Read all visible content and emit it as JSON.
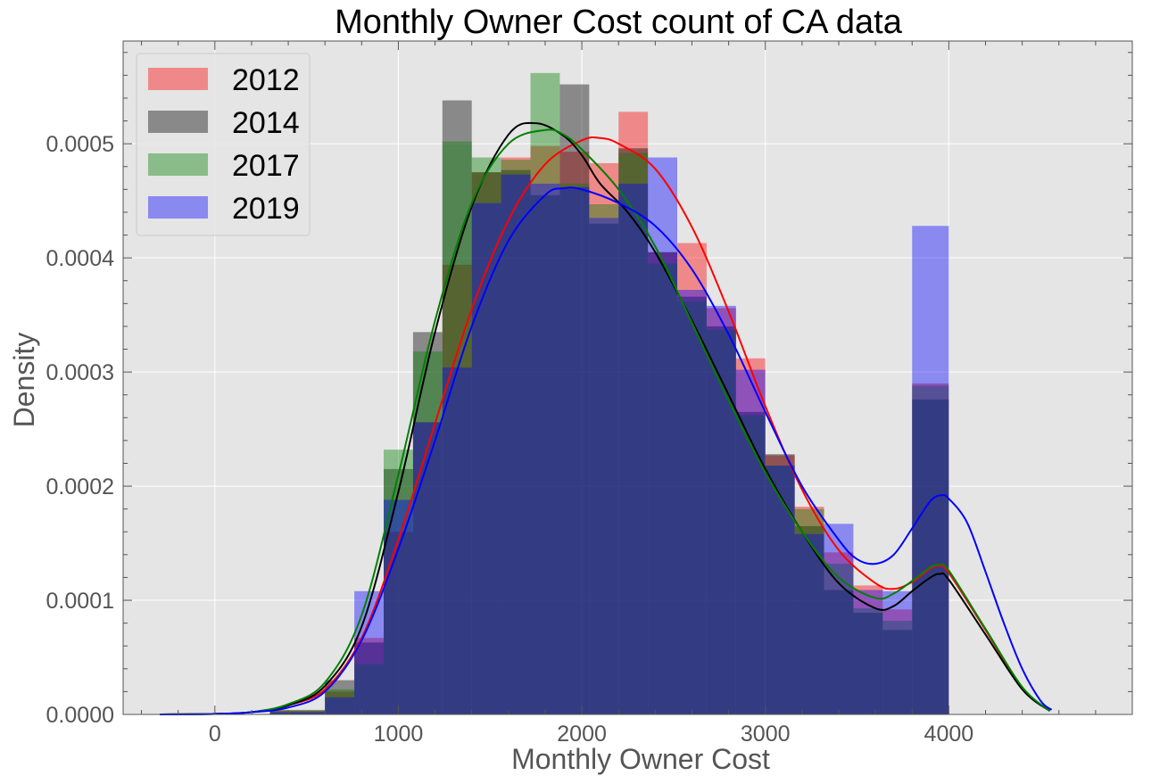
{
  "chart_data": {
    "type": "histogram",
    "title": "Monthly Owner Cost count of CA  data",
    "xlabel": "Monthly Owner Cost",
    "ylabel": "Density",
    "xlim": [
      -500,
      5000
    ],
    "ylim": [
      0,
      0.00059
    ],
    "xticks": [
      0,
      1000,
      2000,
      3000,
      4000
    ],
    "xtick_labels": [
      "0",
      "1000",
      "2000",
      "3000",
      "4000"
    ],
    "yticks": [
      0,
      0.0001,
      0.0002,
      0.0003,
      0.0004,
      0.0005
    ],
    "ytick_labels": [
      "0.0000",
      "0.0001",
      "0.0002",
      "0.0003",
      "0.0004",
      "0.0005"
    ],
    "grid": true,
    "legend_position": "top-left",
    "series": [
      {
        "name": "2012",
        "color": "#ff0000",
        "bins": [
          [
            -300,
            0,
            0.0
          ],
          [
            0,
            300,
            0.0
          ],
          [
            300,
            600,
            3e-06
          ],
          [
            600,
            760,
            2e-05
          ],
          [
            760,
            920,
            6.7e-05
          ],
          [
            920,
            1080,
            0.00016
          ],
          [
            1080,
            1240,
            0.000256
          ],
          [
            1240,
            1400,
            0.000394
          ],
          [
            1400,
            1560,
            0.000475
          ],
          [
            1560,
            1720,
            0.000488
          ],
          [
            1720,
            1880,
            0.000498
          ],
          [
            1880,
            2040,
            0.000493
          ],
          [
            2040,
            2200,
            0.000483
          ],
          [
            2200,
            2360,
            0.000528
          ],
          [
            2360,
            2520,
            0.000405
          ],
          [
            2520,
            2680,
            0.000413
          ],
          [
            2680,
            2840,
            0.000356
          ],
          [
            2840,
            3000,
            0.000312
          ],
          [
            3000,
            3160,
            0.000227
          ],
          [
            3160,
            3320,
            0.000182
          ],
          [
            3320,
            3480,
            0.000142
          ],
          [
            3480,
            3640,
            0.000113
          ],
          [
            3640,
            3800,
            9.2e-05
          ],
          [
            3800,
            4000,
            0.00029
          ]
        ],
        "kde": [
          [
            -300,
            0
          ],
          [
            0,
            5e-07
          ],
          [
            200,
            2e-06
          ],
          [
            400,
            8e-06
          ],
          [
            600,
            2.2e-05
          ],
          [
            800,
            6.7e-05
          ],
          [
            1000,
            0.000153
          ],
          [
            1200,
            0.000255
          ],
          [
            1400,
            0.000355
          ],
          [
            1600,
            0.000433
          ],
          [
            1800,
            0.000482
          ],
          [
            2000,
            0.000503
          ],
          [
            2100,
            0.000505
          ],
          [
            2200,
            0.0005
          ],
          [
            2400,
            0.000478
          ],
          [
            2600,
            0.000427
          ],
          [
            2800,
            0.000353
          ],
          [
            3000,
            0.00027
          ],
          [
            3200,
            0.000197
          ],
          [
            3400,
            0.000144
          ],
          [
            3600,
            0.000115
          ],
          [
            3700,
            0.00011
          ],
          [
            3800,
            0.000116
          ],
          [
            3900,
            0.000128
          ],
          [
            3950,
            0.00013
          ],
          [
            4000,
            0.000124
          ],
          [
            4200,
            7.4e-05
          ],
          [
            4400,
            2.3e-05
          ],
          [
            4550,
            3e-06
          ]
        ]
      },
      {
        "name": "2014",
        "color": "#000000",
        "bins": [
          [
            -300,
            0,
            0.0
          ],
          [
            0,
            300,
            0.0
          ],
          [
            300,
            600,
            4e-06
          ],
          [
            600,
            760,
            3e-05
          ],
          [
            760,
            920,
            6.3e-05
          ],
          [
            920,
            1080,
            0.000215
          ],
          [
            1080,
            1240,
            0.000335
          ],
          [
            1240,
            1400,
            0.000538
          ],
          [
            1400,
            1560,
            0.000475
          ],
          [
            1560,
            1720,
            0.000477
          ],
          [
            1720,
            1880,
            0.000455
          ],
          [
            1880,
            2040,
            0.000552
          ],
          [
            2040,
            2200,
            0.00043
          ],
          [
            2200,
            2360,
            0.000496
          ],
          [
            2360,
            2520,
            0.000405
          ],
          [
            2520,
            2680,
            0.000366
          ],
          [
            2680,
            2840,
            0.00034
          ],
          [
            2840,
            3000,
            0.000265
          ],
          [
            3000,
            3160,
            0.000228
          ],
          [
            3160,
            3320,
            0.000165
          ],
          [
            3320,
            3480,
            0.000109
          ],
          [
            3480,
            3640,
            8.9e-05
          ],
          [
            3640,
            3800,
            7.4e-05
          ],
          [
            3800,
            4000,
            0.000276
          ]
        ],
        "kde": [
          [
            -300,
            0
          ],
          [
            0,
            5e-07
          ],
          [
            200,
            2e-06
          ],
          [
            400,
            8e-06
          ],
          [
            600,
            2.5e-05
          ],
          [
            800,
            7.7e-05
          ],
          [
            1000,
            0.000195
          ],
          [
            1200,
            0.000335
          ],
          [
            1400,
            0.000445
          ],
          [
            1600,
            0.000508
          ],
          [
            1750,
            0.000518
          ],
          [
            1900,
            0.000507
          ],
          [
            2000,
            0.00049
          ],
          [
            2100,
            0.000465
          ],
          [
            2250,
            0.00044
          ],
          [
            2400,
            0.000405
          ],
          [
            2600,
            0.000345
          ],
          [
            2800,
            0.00028
          ],
          [
            3000,
            0.000215
          ],
          [
            3200,
            0.00016
          ],
          [
            3400,
            0.000115
          ],
          [
            3600,
            9.3e-05
          ],
          [
            3700,
            9.5e-05
          ],
          [
            3800,
            0.000108
          ],
          [
            3900,
            0.00012
          ],
          [
            3950,
            0.000123
          ],
          [
            4000,
            0.000118
          ],
          [
            4200,
            7e-05
          ],
          [
            4400,
            2.2e-05
          ],
          [
            4550,
            3e-06
          ]
        ]
      },
      {
        "name": "2017",
        "color": "#008000",
        "bins": [
          [
            -300,
            0,
            0.0
          ],
          [
            0,
            300,
            0.0
          ],
          [
            300,
            600,
            3e-06
          ],
          [
            600,
            760,
            2.2e-05
          ],
          [
            760,
            920,
            4.4e-05
          ],
          [
            920,
            1080,
            0.000232
          ],
          [
            1080,
            1240,
            0.000318
          ],
          [
            1240,
            1400,
            0.000502
          ],
          [
            1400,
            1560,
            0.000488
          ],
          [
            1560,
            1720,
            0.000486
          ],
          [
            1720,
            1880,
            0.000562
          ],
          [
            1880,
            2040,
            0.000465
          ],
          [
            2040,
            2200,
            0.000447
          ],
          [
            2200,
            2360,
            0.000492
          ],
          [
            2360,
            2520,
            0.000395
          ],
          [
            2520,
            2680,
            0.000362
          ],
          [
            2680,
            2840,
            0.000337
          ],
          [
            2840,
            3000,
            0.000262
          ],
          [
            3000,
            3160,
            0.000218
          ],
          [
            3160,
            3320,
            0.00018
          ],
          [
            3320,
            3480,
            0.000132
          ],
          [
            3480,
            3640,
            9.3e-05
          ],
          [
            3640,
            3800,
            8.2e-05
          ],
          [
            3800,
            4000,
            0.000288
          ]
        ],
        "kde": [
          [
            -300,
            0
          ],
          [
            0,
            5e-07
          ],
          [
            200,
            2e-06
          ],
          [
            400,
            9e-06
          ],
          [
            600,
            2.8e-05
          ],
          [
            800,
            8.7e-05
          ],
          [
            1000,
            0.00021
          ],
          [
            1200,
            0.000345
          ],
          [
            1400,
            0.000448
          ],
          [
            1600,
            0.0005
          ],
          [
            1800,
            0.000512
          ],
          [
            1900,
            0.000508
          ],
          [
            2000,
            0.000495
          ],
          [
            2200,
            0.00046
          ],
          [
            2400,
            0.00041
          ],
          [
            2600,
            0.000343
          ],
          [
            2800,
            0.000275
          ],
          [
            3000,
            0.000212
          ],
          [
            3200,
            0.00016
          ],
          [
            3400,
            0.00012
          ],
          [
            3600,
            0.000102
          ],
          [
            3700,
            0.000106
          ],
          [
            3800,
            0.000117
          ],
          [
            3900,
            0.000129
          ],
          [
            3950,
            0.000131
          ],
          [
            4000,
            0.000126
          ],
          [
            4200,
            7.5e-05
          ],
          [
            4400,
            2.4e-05
          ],
          [
            4550,
            3e-06
          ]
        ]
      },
      {
        "name": "2019",
        "color": "#0000ff",
        "bins": [
          [
            -300,
            0,
            0.0
          ],
          [
            0,
            300,
            0.0
          ],
          [
            300,
            600,
            2e-06
          ],
          [
            600,
            760,
            1.5e-05
          ],
          [
            760,
            920,
            0.000108
          ],
          [
            920,
            1080,
            0.000188
          ],
          [
            1080,
            1240,
            0.000256
          ],
          [
            1240,
            1400,
            0.000304
          ],
          [
            1400,
            1560,
            0.000448
          ],
          [
            1560,
            1720,
            0.000473
          ],
          [
            1720,
            1880,
            0.000465
          ],
          [
            1880,
            2040,
            0.000462
          ],
          [
            2040,
            2200,
            0.000435
          ],
          [
            2200,
            2360,
            0.000465
          ],
          [
            2360,
            2520,
            0.000488
          ],
          [
            2520,
            2680,
            0.000372
          ],
          [
            2680,
            2840,
            0.000358
          ],
          [
            2840,
            3000,
            0.000302
          ],
          [
            3000,
            3160,
            0.000218
          ],
          [
            3160,
            3320,
            0.000158
          ],
          [
            3320,
            3480,
            0.000167
          ],
          [
            3480,
            3640,
            0.000109
          ],
          [
            3640,
            3800,
            0.000108
          ],
          [
            3800,
            4000,
            0.000428
          ]
        ],
        "kde": [
          [
            -300,
            0
          ],
          [
            0,
            4e-07
          ],
          [
            200,
            2e-06
          ],
          [
            400,
            6e-06
          ],
          [
            600,
            2e-05
          ],
          [
            800,
            6.5e-05
          ],
          [
            1000,
            0.000145
          ],
          [
            1200,
            0.00024
          ],
          [
            1400,
            0.00034
          ],
          [
            1600,
            0.000415
          ],
          [
            1800,
            0.000455
          ],
          [
            1900,
            0.000461
          ],
          [
            2000,
            0.00046
          ],
          [
            2200,
            0.000448
          ],
          [
            2400,
            0.000428
          ],
          [
            2600,
            0.00039
          ],
          [
            2800,
            0.000333
          ],
          [
            3000,
            0.000265
          ],
          [
            3200,
            0.0002
          ],
          [
            3400,
            0.000153
          ],
          [
            3500,
            0.000136
          ],
          [
            3600,
            0.000132
          ],
          [
            3700,
            0.00014
          ],
          [
            3800,
            0.000163
          ],
          [
            3900,
            0.000187
          ],
          [
            3960,
            0.000192
          ],
          [
            4000,
            0.000189
          ],
          [
            4100,
            0.000168
          ],
          [
            4200,
            0.000125
          ],
          [
            4300,
            8e-05
          ],
          [
            4400,
            4e-05
          ],
          [
            4500,
            1.2e-05
          ],
          [
            4560,
            4e-06
          ]
        ]
      }
    ]
  }
}
